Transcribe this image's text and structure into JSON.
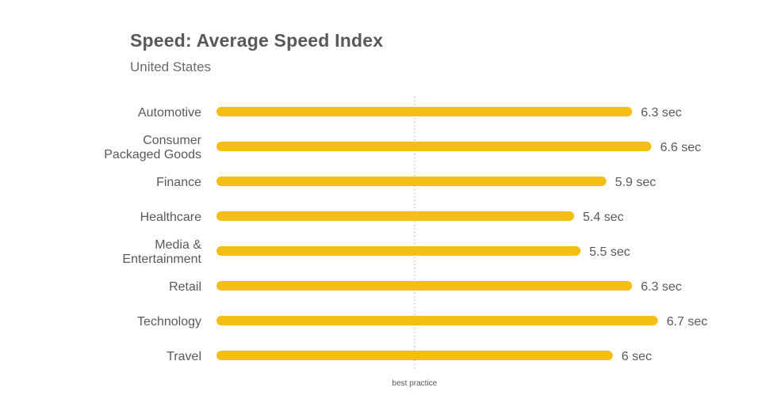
{
  "chart_data": {
    "type": "bar",
    "orientation": "horizontal",
    "title": "Speed: Average Speed Index",
    "subtitle": "United States",
    "categories": [
      [
        "Automotive"
      ],
      [
        "Consumer",
        "Packaged Goods"
      ],
      [
        "Finance"
      ],
      [
        "Healthcare"
      ],
      [
        "Media &",
        "Entertainment"
      ],
      [
        "Retail"
      ],
      [
        "Technology"
      ],
      [
        "Travel"
      ]
    ],
    "values": [
      6.3,
      6.6,
      5.9,
      5.4,
      5.5,
      6.3,
      6.7,
      6
    ],
    "value_labels": [
      "6.3 sec",
      "6.6 sec",
      "5.9 sec",
      "5.4 sec",
      "5.5 sec",
      "6.3 sec",
      "6.7 sec",
      "6 sec"
    ],
    "reference_line": {
      "value": 3,
      "label": "best practice"
    },
    "xlim": [
      0,
      6.9
    ],
    "grid": false,
    "colors": {
      "bar": "#f4be14",
      "text": "#595959",
      "reference": "#bdbdbd"
    }
  }
}
